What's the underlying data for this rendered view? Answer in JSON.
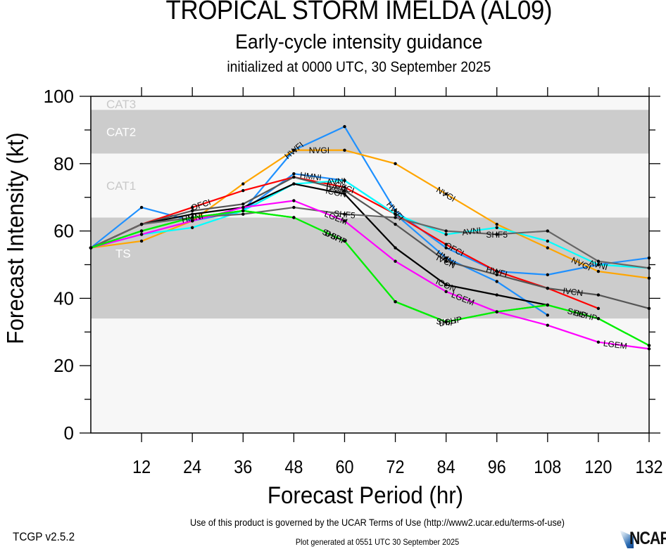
{
  "header": {
    "title": "TROPICAL STORM IMELDA (AL09)",
    "subtitle": "Early-cycle intensity guidance",
    "initialized": "initialized at 0000 UTC, 30 September 2025"
  },
  "footer": {
    "terms": "Use of this product is governed by the UCAR Terms of Use (http://www2.ucar.edu/terms-of-use)",
    "generated": "Plot generated at 0551 UTC   30 September 2025",
    "version": "TCGP v2.5.2",
    "logo_text": "NCAR"
  },
  "chart_data": {
    "type": "line",
    "title": "TROPICAL STORM IMELDA (AL09)",
    "subtitle": "Early-cycle intensity guidance",
    "xlabel": "Forecast Period (hr)",
    "ylabel": "Forecast Intensity (kt)",
    "xlim": [
      0,
      132
    ],
    "ylim": [
      0,
      100
    ],
    "xticks": [
      12,
      24,
      36,
      48,
      60,
      72,
      84,
      96,
      108,
      120,
      132
    ],
    "yticks": [
      0,
      20,
      40,
      60,
      80,
      100
    ],
    "grid": false,
    "legend": "inline labels on lines",
    "bands": [
      {
        "label": "TS",
        "from": 34,
        "to": 64,
        "color": "#cccccc",
        "label_color": "#ffffff"
      },
      {
        "label": "CAT1",
        "from": 64,
        "to": 83,
        "color": "#f7f7f7",
        "label_color": "#c8c8c8"
      },
      {
        "label": "CAT2",
        "from": 83,
        "to": 96,
        "color": "#cccccc",
        "label_color": "#ffffff"
      },
      {
        "label": "CAT3",
        "from": 96,
        "to": 113,
        "color": "#f7f7f7",
        "label_color": "#c8c8c8"
      }
    ],
    "series": [
      {
        "name": "HWFI",
        "color": "#1e90ff",
        "x": [
          0,
          12,
          24,
          36,
          48,
          60,
          72,
          84,
          96,
          108,
          120,
          132
        ],
        "values": [
          55,
          67,
          63,
          66,
          84,
          91,
          66,
          55,
          48,
          47,
          50,
          52
        ],
        "label_at": [
          48,
          72,
          96
        ]
      },
      {
        "name": "NVGI",
        "color": "#ffa500",
        "x": [
          0,
          12,
          24,
          36,
          48,
          60,
          72,
          84,
          96,
          108,
          120,
          132
        ],
        "values": [
          55,
          57,
          63,
          74,
          84,
          84,
          80,
          71,
          62,
          55,
          48,
          46
        ],
        "label_at": [
          54,
          84,
          116
        ]
      },
      {
        "name": "HMNI",
        "color": "#1e90ff",
        "x": [
          0,
          12,
          24,
          36,
          48,
          60,
          72,
          84,
          96,
          108
        ],
        "values": [
          55,
          60,
          64,
          66,
          77,
          75,
          65,
          52,
          45,
          35
        ],
        "label_at": [
          24,
          52,
          84
        ]
      },
      {
        "name": "OFCI",
        "color": "#ff0000",
        "x": [
          0,
          12,
          24,
          36,
          48,
          60,
          72,
          84,
          96,
          108,
          120
        ],
        "values": [
          55,
          62,
          67,
          72,
          76,
          73,
          65,
          56,
          48,
          43,
          37
        ],
        "label_at": [
          26,
          60,
          86
        ]
      },
      {
        "name": "AVNI",
        "color": "#00ffff",
        "x": [
          0,
          12,
          24,
          36,
          48,
          60,
          72,
          84,
          96,
          108,
          120,
          132
        ],
        "values": [
          55,
          59,
          61,
          66,
          74,
          75,
          65,
          59,
          61,
          57,
          50,
          49
        ],
        "label_at": [
          58,
          90,
          120
        ]
      },
      {
        "name": "IVCN",
        "color": "#555555",
        "x": [
          0,
          12,
          24,
          36,
          48,
          60,
          72,
          84,
          96,
          108,
          120,
          132
        ],
        "values": [
          55,
          62,
          66,
          68,
          76,
          72,
          62,
          51,
          47,
          43,
          41,
          37
        ],
        "label_at": [
          58,
          84,
          114
        ]
      },
      {
        "name": "ICON",
        "color": "#000000",
        "x": [
          0,
          12,
          24,
          36,
          48,
          60,
          72,
          84,
          96,
          108
        ],
        "values": [
          55,
          62,
          65,
          67,
          74,
          71,
          55,
          44,
          41,
          38
        ],
        "label_at": [
          58,
          84
        ]
      },
      {
        "name": "SHF5",
        "color": "#666666",
        "x": [
          0,
          12,
          24,
          36,
          48,
          60,
          72,
          84,
          96,
          108,
          120,
          132
        ],
        "values": [
          55,
          62,
          64,
          65,
          67,
          65,
          64,
          60,
          59,
          60,
          51,
          49
        ],
        "label_at": [
          60,
          96
        ]
      },
      {
        "name": "LGEM",
        "color": "#ff00ff",
        "x": [
          0,
          12,
          24,
          36,
          48,
          60,
          72,
          84,
          96,
          108,
          120,
          132
        ],
        "values": [
          55,
          59,
          63,
          67,
          69,
          63,
          51,
          42,
          36,
          32,
          27,
          25
        ],
        "label_at": [
          58,
          88,
          124
        ]
      },
      {
        "name": "SHIP",
        "color": "#00ee00",
        "x": [
          0,
          12,
          24,
          36,
          48,
          60,
          72,
          84,
          96,
          108,
          120,
          132
        ],
        "values": [
          55,
          60,
          64,
          66,
          64,
          57,
          39,
          33,
          36,
          38,
          34,
          26
        ],
        "label_at": [
          57,
          84,
          115
        ]
      },
      {
        "name": "DSHP",
        "color": "#00ee00",
        "x": [
          0,
          12,
          24,
          36,
          48,
          60,
          72,
          84,
          96,
          108,
          120,
          132
        ],
        "values": [
          55,
          60,
          64,
          66,
          64,
          57,
          39,
          33,
          36,
          38,
          34,
          26
        ],
        "label_at": [
          58,
          85,
          117
        ]
      }
    ]
  }
}
